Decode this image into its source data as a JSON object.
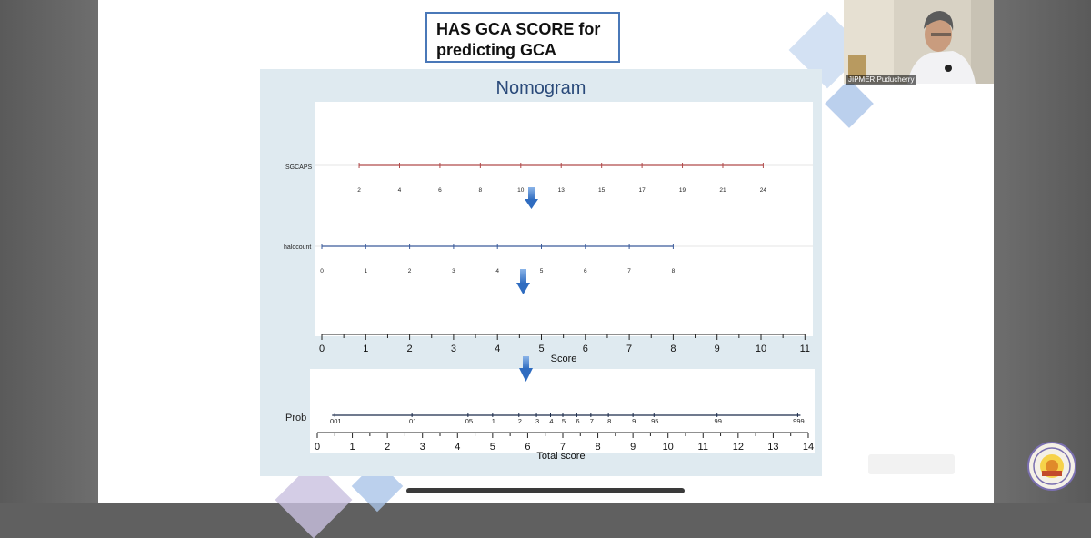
{
  "slide": {
    "title": "HAS GCA SCORE for predicting GCA",
    "nomogram_heading": "Nomogram"
  },
  "webcam": {
    "label": "JIPMER Puducherry"
  },
  "chart_data": {
    "type": "nomogram",
    "title": "Nomogram",
    "rows": [
      {
        "name": "SGCAPS",
        "labels": [
          "2",
          "4",
          "6",
          "8",
          "10",
          "13",
          "15",
          "17",
          "19",
          "21",
          "24"
        ],
        "points": [
          0.85,
          1.77,
          2.69,
          3.61,
          4.53,
          5.45,
          6.37,
          7.29,
          8.21,
          9.13,
          10.05
        ],
        "color": "#b04a4a"
      },
      {
        "name": "halocount",
        "labels": [
          "0",
          "1",
          "2",
          "3",
          "4",
          "5",
          "6",
          "7",
          "8"
        ],
        "points": [
          0,
          1,
          2,
          3,
          4,
          5,
          6,
          7,
          8
        ],
        "color": "#3a5a9a"
      }
    ],
    "score_axis": {
      "label": "Score",
      "ticks": [
        "0",
        "1",
        "2",
        "3",
        "4",
        "5",
        "6",
        "7",
        "8",
        "9",
        "10",
        "11"
      ],
      "range": [
        0,
        11
      ]
    },
    "prob_row": {
      "name": "Prob",
      "labels": [
        ".001",
        ".01",
        ".05",
        ".1",
        ".2",
        ".3",
        ".4",
        ".5",
        ".6",
        ".7",
        ".8",
        ".9",
        ".95",
        ".99",
        ".999"
      ],
      "total_points": [
        0.5,
        2.7,
        4.3,
        5.0,
        5.75,
        6.25,
        6.65,
        7.0,
        7.4,
        7.8,
        8.3,
        9.0,
        9.6,
        11.4,
        13.7
      ],
      "color": "#1a2a4a"
    },
    "total_axis": {
      "label": "Total score",
      "ticks": [
        "0",
        "1",
        "2",
        "3",
        "4",
        "5",
        "6",
        "7",
        "8",
        "9",
        "10",
        "11",
        "12",
        "13",
        "14"
      ],
      "range": [
        0,
        14
      ]
    }
  }
}
